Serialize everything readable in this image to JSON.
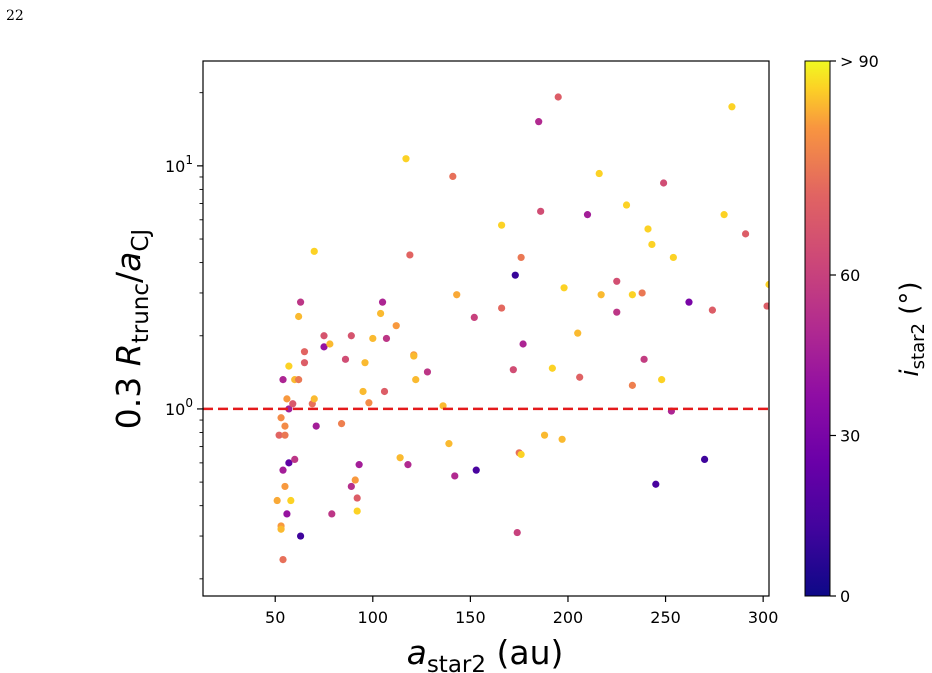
{
  "page": {
    "number": "22"
  },
  "colors": {
    "threshold_line": "#e41a1c",
    "axis": "#000000"
  },
  "chart_data": {
    "type": "scatter",
    "title": "",
    "xlabel": {
      "var": "a",
      "sub": "star2",
      "units": " (au)"
    },
    "ylabel": {
      "prefix": "0.3 ",
      "var1": "R",
      "sub1": "trunc",
      "slash": "/",
      "var2": "a",
      "sub2": "CJ"
    },
    "xlim": [
      13,
      303
    ],
    "ylim": [
      0.17,
      27
    ],
    "yscale": "log",
    "x_ticks": [
      50,
      100,
      150,
      200,
      250,
      300
    ],
    "x_tick_labels": [
      "50",
      "100",
      "150",
      "200",
      "250",
      "300"
    ],
    "y_ticks": [
      1,
      10
    ],
    "y_tick_labels": [
      {
        "base": "10",
        "exp": "0"
      },
      {
        "base": "10",
        "exp": "1"
      }
    ],
    "threshold": {
      "y": 1.0,
      "style": "dashed"
    },
    "colorbar": {
      "label": {
        "var": "i",
        "sub": "star2",
        "units": " (°)"
      },
      "range": [
        0,
        100
      ],
      "colormap": "plasma",
      "ticks": [
        0,
        30,
        60,
        100
      ],
      "tick_labels": [
        "0",
        "30",
        "60",
        "> 90"
      ]
    },
    "points": [
      {
        "x": 51,
        "y": 0.42,
        "c": 90
      },
      {
        "x": 52,
        "y": 0.78,
        "c": 75
      },
      {
        "x": 53,
        "y": 0.92,
        "c": 85
      },
      {
        "x": 53,
        "y": 0.33,
        "c": 88
      },
      {
        "x": 53,
        "y": 0.32,
        "c": 92
      },
      {
        "x": 54,
        "y": 1.32,
        "c": 48
      },
      {
        "x": 54,
        "y": 0.56,
        "c": 45
      },
      {
        "x": 54,
        "y": 0.24,
        "c": 78
      },
      {
        "x": 55,
        "y": 0.48,
        "c": 88
      },
      {
        "x": 55,
        "y": 0.85,
        "c": 85
      },
      {
        "x": 55,
        "y": 0.78,
        "c": 80
      },
      {
        "x": 56,
        "y": 1.1,
        "c": 88
      },
      {
        "x": 56,
        "y": 0.37,
        "c": 40
      },
      {
        "x": 57,
        "y": 1.5,
        "c": 95
      },
      {
        "x": 57,
        "y": 1.0,
        "c": 45
      },
      {
        "x": 57,
        "y": 0.6,
        "c": 22
      },
      {
        "x": 58,
        "y": 0.42,
        "c": 95
      },
      {
        "x": 59,
        "y": 1.05,
        "c": 70
      },
      {
        "x": 60,
        "y": 0.62,
        "c": 55
      },
      {
        "x": 60,
        "y": 1.32,
        "c": 92
      },
      {
        "x": 62,
        "y": 2.4,
        "c": 92
      },
      {
        "x": 62,
        "y": 1.32,
        "c": 80
      },
      {
        "x": 63,
        "y": 2.75,
        "c": 55
      },
      {
        "x": 63,
        "y": 0.3,
        "c": 12
      },
      {
        "x": 65,
        "y": 1.72,
        "c": 75
      },
      {
        "x": 65,
        "y": 1.55,
        "c": 72
      },
      {
        "x": 69,
        "y": 1.05,
        "c": 78
      },
      {
        "x": 70,
        "y": 1.1,
        "c": 92
      },
      {
        "x": 70,
        "y": 4.45,
        "c": 95
      },
      {
        "x": 71,
        "y": 0.85,
        "c": 45
      },
      {
        "x": 75,
        "y": 2.0,
        "c": 68
      },
      {
        "x": 75,
        "y": 1.8,
        "c": 40
      },
      {
        "x": 78,
        "y": 1.85,
        "c": 92
      },
      {
        "x": 79,
        "y": 0.37,
        "c": 55
      },
      {
        "x": 84,
        "y": 0.87,
        "c": 82
      },
      {
        "x": 86,
        "y": 1.6,
        "c": 65
      },
      {
        "x": 89,
        "y": 0.48,
        "c": 52
      },
      {
        "x": 89,
        "y": 2.0,
        "c": 68
      },
      {
        "x": 91,
        "y": 0.51,
        "c": 88
      },
      {
        "x": 92,
        "y": 0.43,
        "c": 72
      },
      {
        "x": 92,
        "y": 0.38,
        "c": 95
      },
      {
        "x": 93,
        "y": 0.59,
        "c": 45
      },
      {
        "x": 95,
        "y": 1.18,
        "c": 92
      },
      {
        "x": 96,
        "y": 1.55,
        "c": 92
      },
      {
        "x": 98,
        "y": 1.06,
        "c": 85
      },
      {
        "x": 100,
        "y": 1.95,
        "c": 92
      },
      {
        "x": 104,
        "y": 2.47,
        "c": 92
      },
      {
        "x": 105,
        "y": 2.75,
        "c": 48
      },
      {
        "x": 106,
        "y": 1.18,
        "c": 72
      },
      {
        "x": 107,
        "y": 1.95,
        "c": 55
      },
      {
        "x": 112,
        "y": 2.2,
        "c": 88
      },
      {
        "x": 114,
        "y": 0.63,
        "c": 92
      },
      {
        "x": 117,
        "y": 10.7,
        "c": 95
      },
      {
        "x": 118,
        "y": 0.59,
        "c": 50
      },
      {
        "x": 119,
        "y": 4.3,
        "c": 75
      },
      {
        "x": 121,
        "y": 1.67,
        "c": 88
      },
      {
        "x": 121,
        "y": 1.65,
        "c": 92
      },
      {
        "x": 122,
        "y": 1.32,
        "c": 92
      },
      {
        "x": 128,
        "y": 1.42,
        "c": 55
      },
      {
        "x": 136,
        "y": 1.03,
        "c": 92
      },
      {
        "x": 139,
        "y": 0.72,
        "c": 92
      },
      {
        "x": 141,
        "y": 9.05,
        "c": 78
      },
      {
        "x": 142,
        "y": 0.53,
        "c": 50
      },
      {
        "x": 143,
        "y": 2.95,
        "c": 90
      },
      {
        "x": 152,
        "y": 2.38,
        "c": 60
      },
      {
        "x": 153,
        "y": 0.56,
        "c": 15
      },
      {
        "x": 166,
        "y": 2.6,
        "c": 76
      },
      {
        "x": 166,
        "y": 5.7,
        "c": 95
      },
      {
        "x": 172,
        "y": 1.45,
        "c": 65
      },
      {
        "x": 173,
        "y": 3.55,
        "c": 10
      },
      {
        "x": 174,
        "y": 0.31,
        "c": 60
      },
      {
        "x": 175,
        "y": 0.66,
        "c": 78
      },
      {
        "x": 176,
        "y": 4.2,
        "c": 80
      },
      {
        "x": 176,
        "y": 0.65,
        "c": 95
      },
      {
        "x": 177,
        "y": 1.85,
        "c": 48
      },
      {
        "x": 185,
        "y": 15.2,
        "c": 50
      },
      {
        "x": 186,
        "y": 6.5,
        "c": 65
      },
      {
        "x": 188,
        "y": 0.78,
        "c": 92
      },
      {
        "x": 192,
        "y": 1.47,
        "c": 95
      },
      {
        "x": 195,
        "y": 19.2,
        "c": 72
      },
      {
        "x": 197,
        "y": 0.75,
        "c": 92
      },
      {
        "x": 198,
        "y": 3.15,
        "c": 95
      },
      {
        "x": 205,
        "y": 2.05,
        "c": 92
      },
      {
        "x": 206,
        "y": 1.35,
        "c": 74
      },
      {
        "x": 210,
        "y": 6.3,
        "c": 45
      },
      {
        "x": 216,
        "y": 9.3,
        "c": 95
      },
      {
        "x": 217,
        "y": 2.95,
        "c": 92
      },
      {
        "x": 225,
        "y": 3.35,
        "c": 66
      },
      {
        "x": 225,
        "y": 2.5,
        "c": 55
      },
      {
        "x": 230,
        "y": 6.9,
        "c": 95
      },
      {
        "x": 233,
        "y": 1.25,
        "c": 82
      },
      {
        "x": 233,
        "y": 2.95,
        "c": 95
      },
      {
        "x": 238,
        "y": 3.0,
        "c": 80
      },
      {
        "x": 239,
        "y": 1.6,
        "c": 58
      },
      {
        "x": 241,
        "y": 5.5,
        "c": 95
      },
      {
        "x": 243,
        "y": 4.75,
        "c": 95
      },
      {
        "x": 245,
        "y": 0.49,
        "c": 15
      },
      {
        "x": 248,
        "y": 1.32,
        "c": 95
      },
      {
        "x": 249,
        "y": 8.5,
        "c": 65
      },
      {
        "x": 253,
        "y": 0.98,
        "c": 48
      },
      {
        "x": 254,
        "y": 4.2,
        "c": 95
      },
      {
        "x": 262,
        "y": 2.75,
        "c": 30
      },
      {
        "x": 270,
        "y": 0.62,
        "c": 12
      },
      {
        "x": 274,
        "y": 2.55,
        "c": 72
      },
      {
        "x": 280,
        "y": 6.3,
        "c": 95
      },
      {
        "x": 284,
        "y": 17.5,
        "c": 95
      },
      {
        "x": 291,
        "y": 5.25,
        "c": 72
      },
      {
        "x": 302,
        "y": 2.65,
        "c": 72
      },
      {
        "x": 303,
        "y": 3.25,
        "c": 95
      }
    ]
  }
}
